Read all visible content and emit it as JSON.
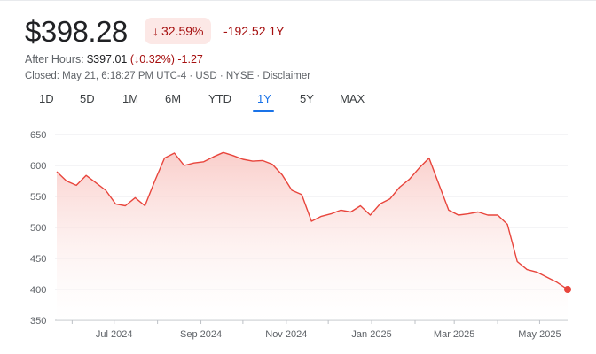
{
  "quote": {
    "price": "$398.28",
    "change_percent": "32.59%",
    "change_abs": "-192.52",
    "period": "1Y",
    "down_arrow": "↓"
  },
  "after_hours": {
    "label": "After Hours:",
    "price": "$397.01",
    "paren_open": "(",
    "percent": "0.32%",
    "paren_close": ")",
    "change": "-1.27"
  },
  "status_line": "Closed: May 21, 6:18:27 PM UTC-4 · USD · NYSE · Disclaimer",
  "tabs": [
    {
      "label": "1D",
      "active": false
    },
    {
      "label": "5D",
      "active": false
    },
    {
      "label": "1M",
      "active": false
    },
    {
      "label": "6M",
      "active": false
    },
    {
      "label": "YTD",
      "active": false
    },
    {
      "label": "1Y",
      "active": true
    },
    {
      "label": "5Y",
      "active": false
    },
    {
      "label": "MAX",
      "active": false
    }
  ],
  "colors": {
    "line": "#e8453c",
    "fill_top": "#f9c9c5",
    "negative_text": "#a50e0e",
    "accent": "#1a73e8"
  },
  "chart_data": {
    "type": "area",
    "ylim": [
      350,
      650
    ],
    "y_ticks": [
      "650",
      "600",
      "550",
      "500",
      "450",
      "400",
      "350"
    ],
    "x_tick_labels": [
      "Jul 2024",
      "Sep 2024",
      "Nov 2024",
      "Jan 2025",
      "Mar 2025",
      "May 2025"
    ],
    "grid": true,
    "series": [
      {
        "x": [
          "2024-05-21",
          "2024-05-28",
          "2024-06-04",
          "2024-06-11",
          "2024-06-18",
          "2024-06-25",
          "2024-07-02",
          "2024-07-09",
          "2024-07-16",
          "2024-07-23",
          "2024-07-30",
          "2024-08-06",
          "2024-08-13",
          "2024-08-20",
          "2024-08-27",
          "2024-09-03",
          "2024-09-10",
          "2024-09-17",
          "2024-09-24",
          "2024-10-01",
          "2024-10-08",
          "2024-10-15",
          "2024-10-22",
          "2024-10-29",
          "2024-11-05",
          "2024-11-12",
          "2024-11-19",
          "2024-11-26",
          "2024-12-03",
          "2024-12-10",
          "2024-12-17",
          "2024-12-24",
          "2024-12-31",
          "2025-01-07",
          "2025-01-14",
          "2025-01-21",
          "2025-01-28",
          "2025-02-04",
          "2025-02-11",
          "2025-02-18",
          "2025-02-25",
          "2025-03-04",
          "2025-03-11",
          "2025-03-18",
          "2025-03-25",
          "2025-04-01",
          "2025-04-08",
          "2025-04-15",
          "2025-04-22",
          "2025-04-29",
          "2025-05-06",
          "2025-05-13",
          "2025-05-21"
        ],
        "values": [
          590,
          575,
          568,
          584,
          572,
          560,
          538,
          535,
          548,
          535,
          575,
          612,
          620,
          600,
          604,
          606,
          614,
          621,
          616,
          610,
          607,
          608,
          602,
          585,
          560,
          553,
          510,
          518,
          522,
          528,
          525,
          535,
          520,
          538,
          546,
          565,
          578,
          596,
          612,
          570,
          528,
          520,
          522,
          525,
          520,
          520,
          505,
          445,
          432,
          428,
          420,
          412,
          400
        ]
      }
    ]
  }
}
